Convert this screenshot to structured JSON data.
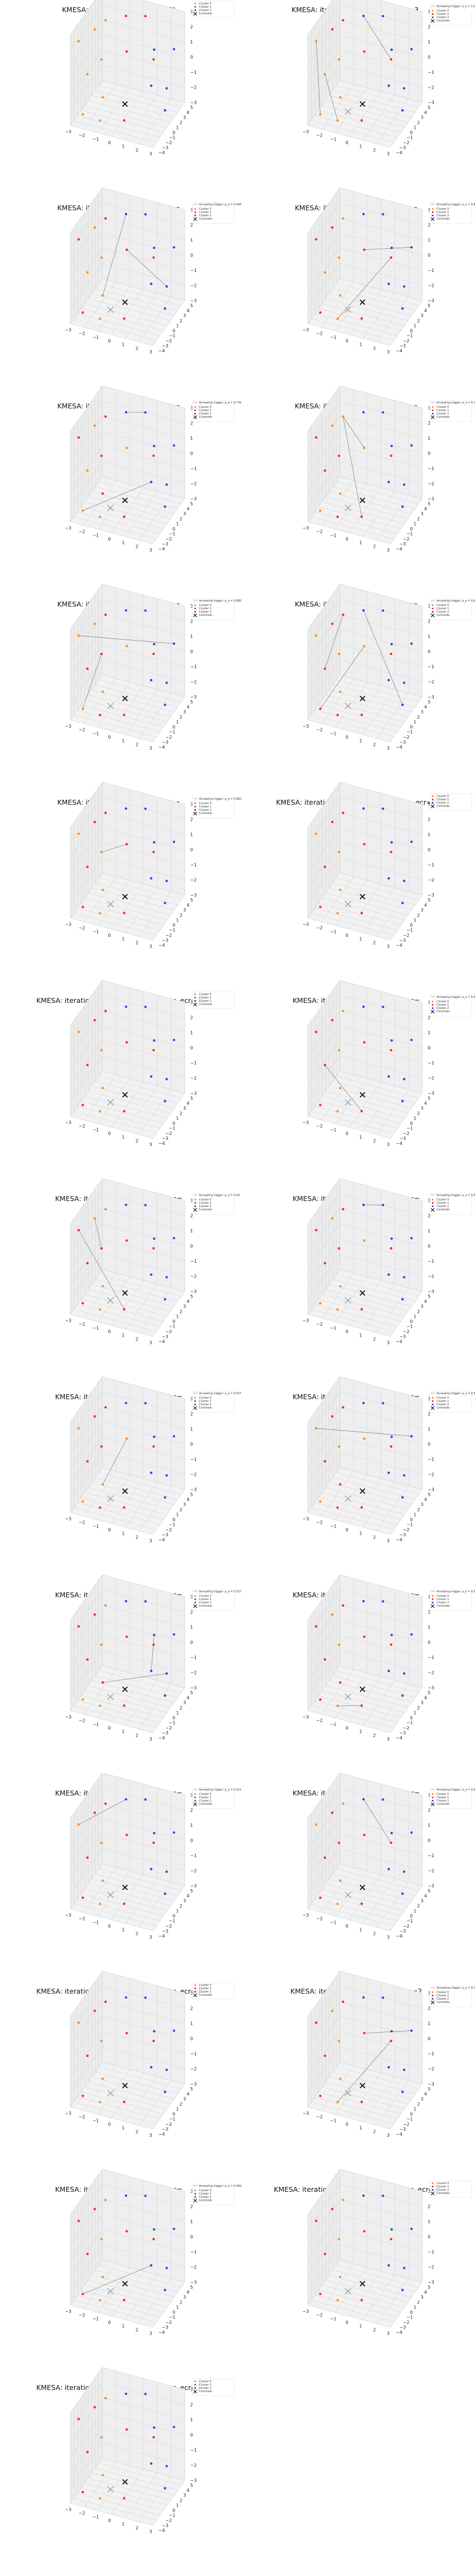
{
  "figure": {
    "panel_titles": [
      "KMESA: initial state (iteration=0)",
      "KMESA: iteration=1, n_annealings=3,",
      "KMESA: iteration=2, n_annealings=",
      "KMESA: iteration=3, n_annealings=",
      "KMESA: iteration=4, n_annealings=",
      "KMESA: iteration=5, n_annealings=",
      "KMESA: iteration=6, n_annealings=",
      "KMESA: iteration=7, n_annealings=",
      "KMESA: iteration=8, n_annealings=",
      "KMESA: iteration=9, n_annealings=0, n_ecr=0",
      "KMESA: iteration=10, n_annealings=0, n_ecr=0",
      "KMESA: iteration=11, n_annealings=",
      "KMESA: iteration=12, n_annealings=",
      "KMESA: iteration=13, n_annealings=",
      "KMESA: iteration=14, n_annealings=",
      "KMESA: iteration=15, n_annealings=",
      "KMESA: iteration=16, n_annealings=",
      "KMESA: iteration=17, n_annealings=",
      "KMESA: iteration=18, n_annealings=",
      "KMESA: iteration=19, n_annealings=",
      "KMESA: iteration=20, n_annealings=0, n_ecr=0",
      "KMESA: iteration=21, n_annealings=2",
      "KMESA: iteration=22, n_annealings=",
      "KMESA: iteration=23, n_annealings=0, n_ecr=0",
      "KMESA: iteration=24, n_annealings=0, n_ecr=0"
    ],
    "legend_entries": [
      "Cluster 0",
      "Cluster 1",
      "Cluster 2",
      "Centroids"
    ],
    "annealing_legend_prefix": "Annealing trigger: p_a",
    "annealing_values": [
      "",
      "= 1.0",
      "= 0.906",
      "= 0.827",
      "= 0.735",
      "= 0.732",
      "= 0.685",
      "= 0.671",
      "= 0.660",
      "",
      "",
      "= 0.594",
      "= 0.58",
      "= 0.598",
      "= 0.557",
      "= 0.542",
      "= 0.537",
      "= 0.529",
      "= 0.521",
      "= 0.513",
      "",
      "= 0.7",
      "= 0.499",
      "",
      ""
    ],
    "colors": {
      "cluster_0": "#ff7f0e",
      "cluster_1": "#e41a1c",
      "cluster_2": "#2b2bd8",
      "cluster_3": "#9a9a9a",
      "centroid": "#111111",
      "annealing_line": "#777777",
      "pane": "#f2f2f2",
      "grid": "#d4d4d4"
    }
  },
  "chart_data": {
    "type": "scatter",
    "projection": "3d",
    "panels": 25,
    "x_ticks": [
      "−3",
      "−2",
      "−1",
      "0",
      "1",
      "2",
      "3"
    ],
    "y_ticks": [
      "−4",
      "−3",
      "−2",
      "−1",
      "0",
      "1",
      "2",
      "3",
      "4",
      "5"
    ],
    "z_ticks": [
      "−3",
      "−2",
      "−1",
      "0",
      "1",
      "2",
      "3"
    ],
    "xlim": [
      -3,
      3
    ],
    "ylim": [
      -4,
      5
    ],
    "zlim": [
      -3,
      3
    ],
    "grid": true,
    "legend_position": "top-right",
    "points": [
      {
        "x": -2.6,
        "y": -3.2,
        "z": 2.4
      },
      {
        "x": -2.0,
        "y": -1.0,
        "z": 2.6
      },
      {
        "x": -1.6,
        "y": 0.5,
        "z": 2.8
      },
      {
        "x": -0.6,
        "y": 2.4,
        "z": 2.7
      },
      {
        "x": 0.4,
        "y": 4.0,
        "z": 2.4
      },
      {
        "x": -1.2,
        "y": -2.2,
        "z": 1.2
      },
      {
        "x": 0.2,
        "y": -0.5,
        "z": 1.5
      },
      {
        "x": 1.6,
        "y": 1.8,
        "z": 1.2
      },
      {
        "x": -2.4,
        "y": -1.5,
        "z": -0.3
      },
      {
        "x": 2.4,
        "y": 4.3,
        "z": 0.6
      },
      {
        "x": 1.2,
        "y": 3.2,
        "z": 0.0
      },
      {
        "x": -0.8,
        "y": -3.4,
        "z": -0.8
      },
      {
        "x": 1.8,
        "y": 0.2,
        "z": -0.6
      },
      {
        "x": -2.2,
        "y": -3.6,
        "z": -2.2
      },
      {
        "x": -1.2,
        "y": -2.6,
        "z": -2.7
      },
      {
        "x": 0.4,
        "y": -2.0,
        "z": -2.5
      },
      {
        "x": 2.6,
        "y": 1.0,
        "z": -2.3
      },
      {
        "x": 2.2,
        "y": 3.0,
        "z": -1.6
      }
    ],
    "centroid_initial": {
      "x": 0.2,
      "y": -1.0,
      "z": -1.8
    },
    "centroid_main": {
      "x": -0.5,
      "y": -2.4,
      "z": -2.0
    },
    "panel_series": [
      {
        "labels": [
          0,
          0,
          0,
          1,
          1,
          0,
          1,
          2,
          0,
          2,
          1,
          0,
          2,
          0,
          0,
          1,
          2,
          2
        ],
        "centroids": 1,
        "annealing_paths": 0
      },
      {
        "labels": [
          0,
          1,
          1,
          2,
          2,
          0,
          1,
          2,
          0,
          2,
          1,
          0,
          2,
          0,
          0,
          1,
          2,
          2
        ],
        "centroids": 2,
        "annealing_paths": 3
      },
      {
        "labels": [
          1,
          0,
          1,
          2,
          2,
          0,
          1,
          2,
          0,
          2,
          1,
          0,
          2,
          1,
          0,
          1,
          2,
          2
        ],
        "centroids": 2,
        "annealing_paths": 2
      },
      {
        "labels": [
          1,
          1,
          0,
          2,
          2,
          0,
          1,
          2,
          0,
          2,
          1,
          0,
          2,
          1,
          0,
          1,
          2,
          2
        ],
        "centroids": 2,
        "annealing_paths": 2
      },
      {
        "labels": [
          1,
          0,
          1,
          2,
          2,
          1,
          0,
          2,
          0,
          2,
          1,
          1,
          2,
          0,
          0,
          1,
          2,
          2
        ],
        "centroids": 2,
        "annealing_paths": 3
      },
      {
        "labels": [
          1,
          0,
          0,
          2,
          2,
          1,
          0,
          2,
          1,
          2,
          1,
          0,
          2,
          0,
          1,
          1,
          2,
          2
        ],
        "centroids": 2,
        "annealing_paths": 2
      },
      {
        "labels": [
          0,
          0,
          1,
          2,
          2,
          1,
          0,
          2,
          1,
          2,
          1,
          0,
          2,
          0,
          1,
          1,
          2,
          2
        ],
        "centroids": 2,
        "annealing_paths": 2
      },
      {
        "labels": [
          0,
          1,
          1,
          2,
          2,
          0,
          0,
          2,
          1,
          2,
          1,
          0,
          2,
          1,
          1,
          1,
          2,
          2
        ],
        "centroids": 2,
        "annealing_paths": 3
      },
      {
        "labels": [
          0,
          1,
          1,
          2,
          2,
          0,
          1,
          2,
          1,
          2,
          1,
          0,
          2,
          1,
          0,
          1,
          2,
          2
        ],
        "centroids": 2,
        "annealing_paths": 1
      },
      {
        "labels": [
          0,
          1,
          1,
          2,
          2,
          0,
          1,
          2,
          1,
          2,
          1,
          0,
          2,
          1,
          0,
          1,
          2,
          2
        ],
        "centroids": 2,
        "annealing_paths": 0
      },
      {
        "labels": [
          0,
          1,
          1,
          2,
          2,
          0,
          1,
          2,
          1,
          2,
          1,
          0,
          2,
          1,
          0,
          1,
          2,
          2
        ],
        "centroids": 2,
        "annealing_paths": 0
      },
      {
        "labels": [
          1,
          1,
          0,
          2,
          2,
          0,
          1,
          2,
          1,
          2,
          1,
          0,
          2,
          1,
          0,
          1,
          2,
          2
        ],
        "centroids": 2,
        "annealing_paths": 1
      },
      {
        "labels": [
          1,
          0,
          0,
          2,
          2,
          1,
          1,
          2,
          1,
          2,
          1,
          0,
          2,
          1,
          0,
          1,
          2,
          2
        ],
        "centroids": 2,
        "annealing_paths": 2
      },
      {
        "labels": [
          1,
          0,
          1,
          2,
          2,
          1,
          0,
          2,
          1,
          2,
          1,
          0,
          2,
          0,
          0,
          1,
          2,
          2
        ],
        "centroids": 2,
        "annealing_paths": 1
      },
      {
        "labels": [
          0,
          1,
          1,
          2,
          2,
          1,
          0,
          2,
          1,
          2,
          1,
          0,
          2,
          0,
          1,
          1,
          2,
          2
        ],
        "centroids": 2,
        "annealing_paths": 1
      },
      {
        "labels": [
          0,
          1,
          1,
          2,
          2,
          0,
          0,
          2,
          1,
          2,
          1,
          1,
          2,
          0,
          1,
          1,
          2,
          2
        ],
        "centroids": 2,
        "annealing_paths": 1
      },
      {
        "labels": [
          1,
          1,
          0,
          2,
          2,
          0,
          1,
          2,
          1,
          2,
          1,
          1,
          2,
          0,
          0,
          1,
          2,
          2
        ],
        "centroids": 2,
        "annealing_paths": 2
      },
      {
        "labels": [
          1,
          0,
          1,
          2,
          2,
          0,
          1,
          2,
          1,
          2,
          1,
          1,
          2,
          1,
          0,
          1,
          2,
          2
        ],
        "centroids": 2,
        "annealing_paths": 1
      },
      {
        "labels": [
          0,
          1,
          1,
          2,
          2,
          0,
          1,
          2,
          1,
          2,
          1,
          0,
          2,
          1,
          0,
          1,
          2,
          2
        ],
        "centroids": 2,
        "annealing_paths": 1
      },
      {
        "labels": [
          0,
          1,
          0,
          2,
          2,
          1,
          1,
          2,
          1,
          2,
          1,
          0,
          2,
          1,
          0,
          1,
          2,
          2
        ],
        "centroids": 2,
        "annealing_paths": 1
      },
      {
        "labels": [
          0,
          1,
          1,
          2,
          2,
          0,
          1,
          2,
          1,
          2,
          1,
          0,
          2,
          1,
          0,
          1,
          2,
          2
        ],
        "centroids": 2,
        "annealing_paths": 0
      },
      {
        "labels": [
          1,
          0,
          1,
          2,
          2,
          0,
          1,
          2,
          1,
          2,
          1,
          0,
          2,
          1,
          0,
          1,
          2,
          2
        ],
        "centroids": 2,
        "annealing_paths": 2
      },
      {
        "labels": [
          1,
          1,
          0,
          2,
          2,
          0,
          1,
          2,
          1,
          2,
          1,
          0,
          2,
          1,
          0,
          1,
          2,
          2
        ],
        "centroids": 2,
        "annealing_paths": 1
      },
      {
        "labels": [
          1,
          1,
          0,
          2,
          2,
          0,
          1,
          2,
          1,
          2,
          1,
          0,
          2,
          1,
          0,
          1,
          2,
          2
        ],
        "centroids": 2,
        "annealing_paths": 0
      },
      {
        "labels": [
          1,
          1,
          0,
          2,
          2,
          0,
          1,
          2,
          1,
          2,
          1,
          0,
          2,
          1,
          0,
          1,
          2,
          2
        ],
        "centroids": 2,
        "annealing_paths": 0
      }
    ]
  }
}
